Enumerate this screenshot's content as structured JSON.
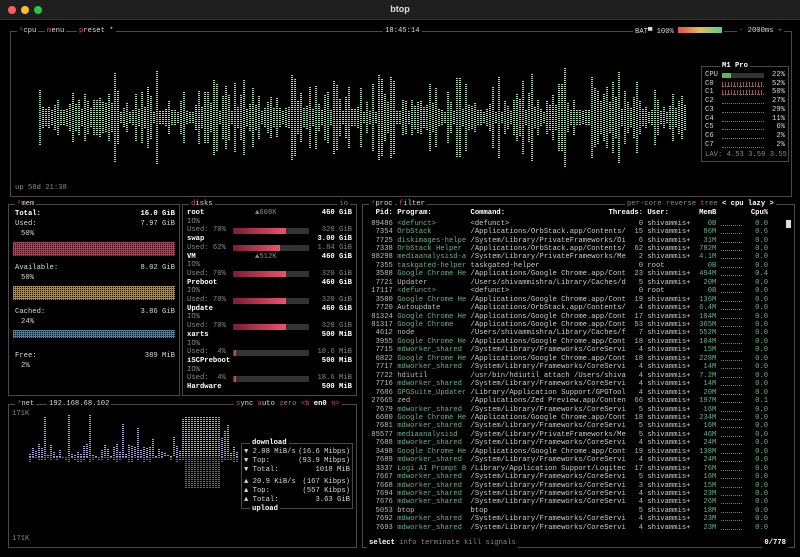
{
  "window": {
    "title": "btop"
  },
  "cpu": {
    "label": "cpu",
    "menu": "menu",
    "preset": "preset *",
    "clock": "18:45:14",
    "battery": "BAT▀ 100%",
    "battery_level": 100,
    "interval": "2000ms",
    "uptime": "up 58d 21:38",
    "chip": "M1 Pro",
    "cores": [
      {
        "name": "CPU",
        "pct": "22%",
        "level": 22
      },
      {
        "name": "C0",
        "pct": "52%"
      },
      {
        "name": "C1",
        "pct": "50%"
      },
      {
        "name": "C2",
        "pct": "27%"
      },
      {
        "name": "C3",
        "pct": "29%"
      },
      {
        "name": "C4",
        "pct": "11%"
      },
      {
        "name": "C5",
        "pct": "6%"
      },
      {
        "name": "C6",
        "pct": "2%"
      },
      {
        "name": "C7",
        "pct": "2%"
      }
    ],
    "load": "LAV: 4.53 3.59 3.55"
  },
  "mem": {
    "label": "mem",
    "total_label": "Total:",
    "total": "16.0 GiB",
    "items": [
      {
        "name": "Used:",
        "value": "7.97 GiB",
        "pct": "50%",
        "color": "#d0607a"
      },
      {
        "name": "Available:",
        "value": "8.02 GiB",
        "pct": "50%",
        "color": "#d8b870"
      },
      {
        "name": "Cached:",
        "value": "3.86 GiB",
        "pct": "24%",
        "color": "#6aa8c8"
      },
      {
        "name": "Free:",
        "value": "389 MiB",
        "pct": "2%",
        "color": "#888"
      }
    ]
  },
  "disks": {
    "label": "disks",
    "io": "io",
    "items": [
      {
        "name": "root",
        "io_rate": "▲608K",
        "size": "460 GiB",
        "io": "IO%",
        "used": "Used: 70%",
        "used_level": 70,
        "used_size": "320 GiB"
      },
      {
        "name": "swap",
        "size": "3.00 GiB",
        "used": "Used: 62%",
        "used_level": 62,
        "used_size": "1.84 GiB"
      },
      {
        "name": "VM",
        "io_rate": "▲512K",
        "size": "460 GiB",
        "io": "IO%",
        "used": "Used: 70%",
        "used_level": 70,
        "used_size": "320 GiB"
      },
      {
        "name": "Preboot",
        "size": "460 GiB",
        "io": "IO%",
        "used": "Used: 70%",
        "used_level": 70,
        "used_size": "320 GiB"
      },
      {
        "name": "Update",
        "size": "460 GiB",
        "io": "IO%",
        "used": "Used: 70%",
        "used_level": 70,
        "used_size": "320 GiB"
      },
      {
        "name": "xarts",
        "size": "500 MiB",
        "io": "IO%",
        "used": "Used:  4%",
        "used_level": 4,
        "used_size": "18.6 MiB"
      },
      {
        "name": "iSCPreboot",
        "size": "500 MiB",
        "io": "IO%",
        "used": "Used:  4%",
        "used_level": 4,
        "used_size": "18.6 MiB"
      },
      {
        "name": "Hardware",
        "size": "500 MiB"
      }
    ]
  },
  "net": {
    "label": "net",
    "ip": "192.168.68.102",
    "sync": "sync",
    "auto": "auto",
    "zero": "zero",
    "iface_prev": "<b",
    "iface": "en0",
    "iface_next": "n>",
    "scale_top": "171K",
    "scale_bottom": "171K",
    "download": {
      "title": "download",
      "rate": "▼ 2.08 MiB/s",
      "rate_bits": "(16.6 Mibps)",
      "top_label": "▼ Top:",
      "top": "(93.9 Mibps)",
      "total_label": "▼ Total:",
      "total": "1018 MiB"
    },
    "upload": {
      "title": "upload",
      "rate": "▲ 20.9 KiB/s",
      "rate_bits": "(167 Kibps)",
      "top_label": "▲ Top:",
      "top": "(557 Kibps)",
      "total_label": "▲ Total:",
      "total": "3.63 GiB"
    }
  },
  "proc": {
    "label": "proc",
    "filter": "filter",
    "per_core": "per-core",
    "reverse": "reverse",
    "tree": "tree",
    "sort": "< cpu lazy >",
    "count": "0/778",
    "headers": {
      "pid": "Pid:",
      "program": "Program:",
      "command": "Command:",
      "threads": "Threads:",
      "user": "User:",
      "mem": "MemB",
      "cpu": "Cpu%"
    },
    "footer": {
      "select": "select",
      "info": "info",
      "terminate": "terminate",
      "kill": "kill",
      "signals": "signals"
    },
    "rows": [
      [
        "89486",
        "<defunct>",
        "<defunct>",
        "0",
        "shivammis+",
        "0B",
        "0.0"
      ],
      [
        "7354",
        "OrbStack",
        "/Applications/OrbStack.app/Contents/",
        "15",
        "shivammis+",
        "86M",
        "0.6"
      ],
      [
        "7725",
        "diskimages-helpe",
        "/System/Library/PrivateFrameworks/Di",
        "6",
        "shivammis+",
        "31M",
        "0.0"
      ],
      [
        "7338",
        "OrbStack Helper",
        "/Applications/OrbStack.app/Contents/",
        "62",
        "shivammis+",
        "782M",
        "0.0"
      ],
      [
        "98298",
        "mediaanalysisd-a",
        "/System/Library/PrivateFrameworks/Me",
        "2",
        "shivammis+",
        "4.1M",
        "0.0"
      ],
      [
        "7355",
        "taskgated-helper",
        "taskgated-helper",
        "0",
        "root",
        "0B",
        "0.0"
      ],
      [
        "3588",
        "Google Chrome He",
        "/Applications/Google Chrome.app/Cont",
        "23",
        "shivammis+",
        "494M",
        "0.4"
      ],
      [
        "7721",
        "Updater",
        "/Users/shivammishra/Library/Caches/d",
        "5",
        "shivammis+",
        "20M",
        "0.0"
      ],
      [
        "17117",
        "<defunct>",
        "<defunct>",
        "0",
        "root",
        "0B",
        "0.0"
      ],
      [
        "3580",
        "Google Chrome He",
        "/Applications/Google Chrome.app/Cont",
        "19",
        "shivammis+",
        "136M",
        "0.0"
      ],
      [
        "7720",
        "Autoupdate",
        "/Applications/OrbStack.app/Contents/",
        "4",
        "shivammis+",
        "6.4M",
        "0.0"
      ],
      [
        "81324",
        "Google Chrome He",
        "/Applications/Google Chrome.app/Cont",
        "17",
        "shivammis+",
        "104M",
        "0.0"
      ],
      [
        "81317",
        "Google Chrome",
        "/Applications/Google Chrome.app/Cont",
        "53",
        "shivammis+",
        "365M",
        "0.0"
      ],
      [
        "4612",
        "node",
        "/Users/shivammishra/Library/Caches/f",
        "7",
        "shivammis+",
        "552M",
        "0.0"
      ],
      [
        "3955",
        "Google Chrome He",
        "/Applications/Google Chrome.app/Cont",
        "18",
        "shivammis+",
        "104M",
        "0.0"
      ],
      [
        "7715",
        "mdworker_shared",
        "/System/Library/Frameworks/CoreServi",
        "4",
        "shivammis+",
        "15M",
        "0.0"
      ],
      [
        "6822",
        "Google Chrome He",
        "/Applications/Google Chrome.app/Cont",
        "18",
        "shivammis+",
        "228M",
        "0.0"
      ],
      [
        "7717",
        "mdworker_shared",
        "/System/Library/Frameworks/CoreServi",
        "4",
        "shivammis+",
        "14M",
        "0.0"
      ],
      [
        "7722",
        "hdiutil",
        "/usr/bin/hdiutil attach /Users/shiva",
        "4",
        "shivammis+",
        "7.2M",
        "0.0"
      ],
      [
        "7716",
        "mdworker_shared",
        "/System/Library/Frameworks/CoreServi",
        "4",
        "shivammis+",
        "14M",
        "0.0"
      ],
      [
        "7686",
        "GPGSuite_Updater",
        "/Library/Application Support/GPGTool",
        "4",
        "shivammis+",
        "20M",
        "0.0"
      ],
      [
        "27665",
        "zed",
        "/Applications/Zed Preview.app/Conten",
        "66",
        "shivammis+",
        "197M",
        "0.1"
      ],
      [
        "7679",
        "mdworker_shared",
        "/System/Library/Frameworks/CoreServi",
        "5",
        "shivammis+",
        "16M",
        "0.0"
      ],
      [
        "6680",
        "Google Chrome He",
        "/Applications/Google Chrome.app/Cont",
        "18",
        "shivammis+",
        "234M",
        "0.0"
      ],
      [
        "7681",
        "mdworker_shared",
        "/System/Library/Frameworks/CoreServi",
        "5",
        "shivammis+",
        "16M",
        "0.0"
      ],
      [
        "85577",
        "mediaanalysisd",
        "/System/Library/PrivateFrameworks/Me",
        "5",
        "shivammis+",
        "46M",
        "0.0"
      ],
      [
        "7688",
        "mdworker_shared",
        "/System/Library/Frameworks/CoreServi",
        "4",
        "shivammis+",
        "24M",
        "0.0"
      ],
      [
        "3498",
        "Google Chrome He",
        "/Applications/Google Chrome.app/Cont",
        "19",
        "shivammis+",
        "138M",
        "0.0"
      ],
      [
        "7689",
        "mdworker_shared",
        "/System/Library/Frameworks/CoreServi",
        "4",
        "shivammis+",
        "24M",
        "0.0"
      ],
      [
        "3337",
        "Logi AI Prompt B",
        "/Library/Application Support/Logitec",
        "17",
        "shivammis+",
        "76M",
        "0.0"
      ],
      [
        "7667",
        "mdworker_shared",
        "/System/Library/Frameworks/CoreServi",
        "5",
        "shivammis+",
        "16M",
        "0.0"
      ],
      [
        "7668",
        "mdworker_shared",
        "/System/Library/Frameworks/CoreServi",
        "3",
        "shivammis+",
        "15M",
        "0.0"
      ],
      [
        "7694",
        "mdworker_shared",
        "/System/Library/Frameworks/CoreServi",
        "4",
        "shivammis+",
        "23M",
        "0.0"
      ],
      [
        "7676",
        "mdworker_shared",
        "/System/Library/Frameworks/CoreServi",
        "4",
        "shivammis+",
        "26M",
        "0.0"
      ],
      [
        "5053",
        "btop",
        "btop",
        "5",
        "shivammis+",
        "18M",
        "0.0"
      ],
      [
        "7692",
        "mdworker_shared",
        "/System/Library/Frameworks/CoreServi",
        "4",
        "shivammis+",
        "23M",
        "0.0"
      ],
      [
        "7693",
        "mdworker_shared",
        "/System/Library/Frameworks/CoreServi",
        "4",
        "shivammis+",
        "23M",
        "0.0"
      ]
    ]
  }
}
